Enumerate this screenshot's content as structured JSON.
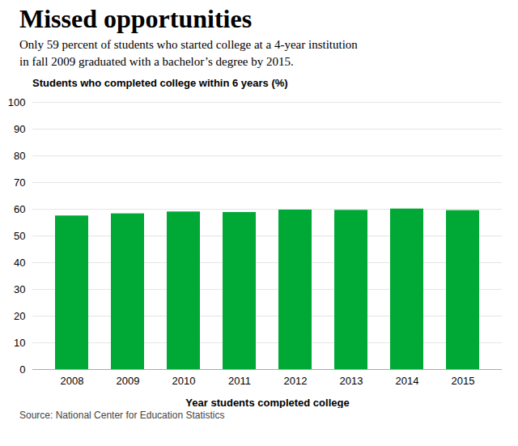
{
  "chart_data": {
    "type": "bar",
    "title": "Missed opportunities",
    "subtitle": "Only 59 percent of students who started college at a 4-year institution\nin fall 2009 graduated with a bachelor’s degree by 2015.",
    "ylabel": "Students who completed college within 6 years (%)",
    "xlabel": "Year students completed college",
    "source": "Source: National Center for Education Statistics",
    "categories": [
      "2008",
      "2009",
      "2010",
      "2011",
      "2012",
      "2013",
      "2014",
      "2015"
    ],
    "values": [
      57.5,
      58.3,
      59.0,
      58.8,
      59.7,
      59.6,
      60.1,
      59.5
    ],
    "color": "#00a835",
    "ylim": [
      0,
      100
    ],
    "yticks": [
      0,
      10,
      20,
      30,
      40,
      50,
      60,
      70,
      80,
      90,
      100
    ],
    "grid": true
  }
}
